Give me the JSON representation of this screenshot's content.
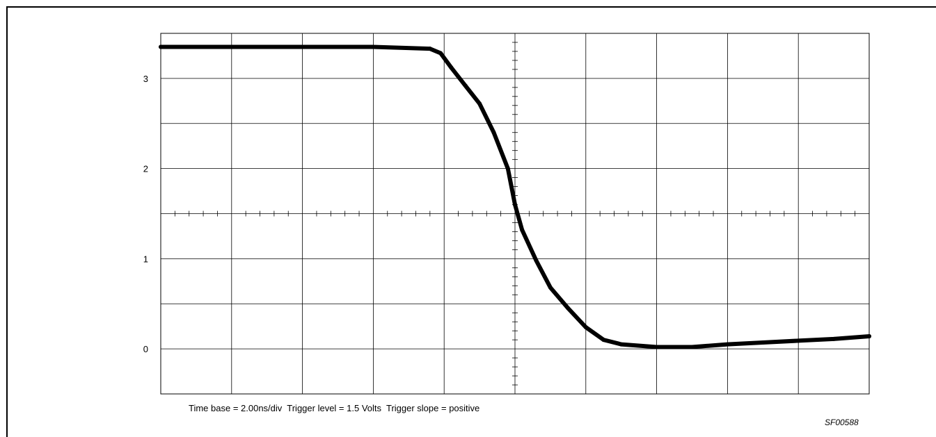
{
  "chart_data": {
    "type": "line",
    "title": "",
    "xlabel": "",
    "ylabel": "",
    "ylim": [
      -0.5,
      3.5
    ],
    "xlim": [
      0,
      20
    ],
    "x_unit": "ns",
    "y_unit": "V",
    "grid": true,
    "x_divisions": 10,
    "y_divisions": 8,
    "yticks": [
      0,
      1,
      2,
      3
    ],
    "ytick_labels": [
      "0",
      "1",
      "2",
      "3"
    ],
    "series": [
      {
        "color": "#000000",
        "x": [
          0,
          2,
          4,
          6,
          7.6,
          7.9,
          8.2,
          8.6,
          9,
          9.4,
          9.8,
          10,
          10.2,
          10.6,
          11,
          11.5,
          12,
          12.5,
          13,
          14,
          15,
          16,
          17,
          18,
          19,
          20
        ],
        "y": [
          3.35,
          3.35,
          3.35,
          3.35,
          3.33,
          3.28,
          3.12,
          2.92,
          2.72,
          2.4,
          2.0,
          1.6,
          1.32,
          0.98,
          0.68,
          0.45,
          0.24,
          0.1,
          0.05,
          0.02,
          0.02,
          0.05,
          0.07,
          0.09,
          0.11,
          0.14
        ]
      }
    ]
  },
  "caption": {
    "text": "Time base = 2.00ns/div  Trigger level = 1.5 Volts  Trigger slope = positive"
  },
  "figure_id": "SF00588"
}
